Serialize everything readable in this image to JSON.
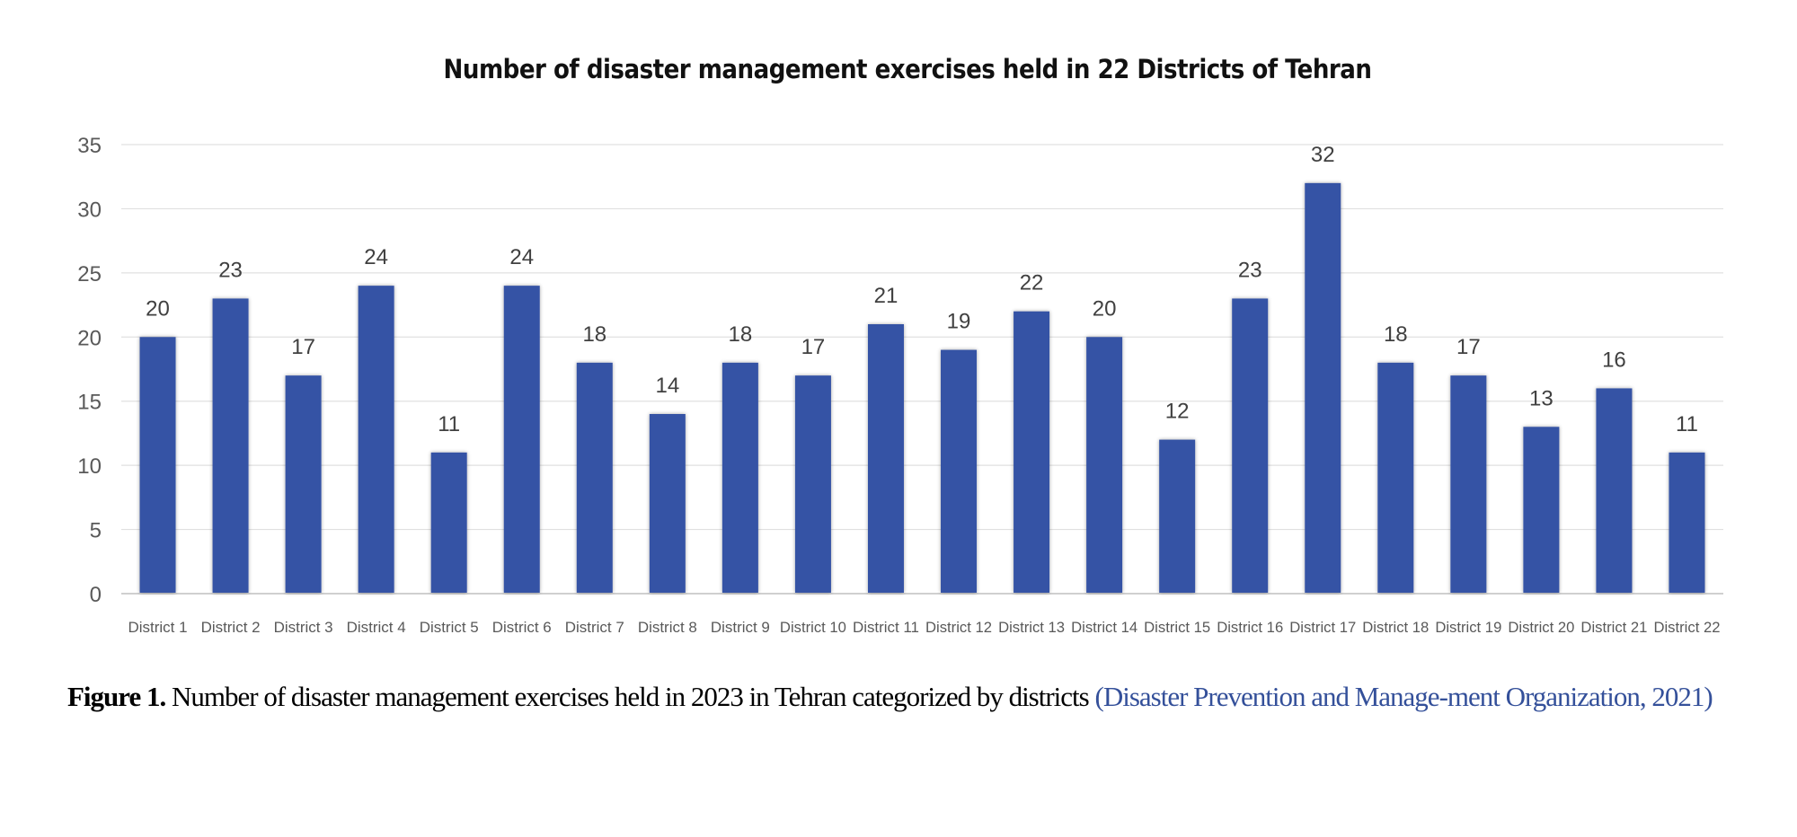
{
  "chart_data": {
    "type": "bar",
    "title": "Number of disaster management exercises held in 22 Districts of Tehran",
    "xlabel": "",
    "ylabel": "",
    "categories": [
      "District 1",
      "District 2",
      "District 3",
      "District 4",
      "District 5",
      "District 6",
      "District 7",
      "District 8",
      "District 9",
      "District 10",
      "District 11",
      "District 12",
      "District 13",
      "District 14",
      "District 15",
      "District 16",
      "District 17",
      "District 18",
      "District 19",
      "District 20",
      "District 21",
      "District 22"
    ],
    "values": [
      20,
      23,
      17,
      24,
      11,
      24,
      18,
      14,
      18,
      17,
      21,
      19,
      22,
      20,
      12,
      23,
      32,
      18,
      17,
      13,
      16,
      11
    ],
    "ylim": [
      0,
      35
    ],
    "yticks": [
      0,
      5,
      10,
      15,
      20,
      25,
      30,
      35
    ],
    "grid": true,
    "data_labels": true,
    "legend": "none",
    "bar_color": "#3653a5"
  },
  "caption": {
    "label": "Figure 1.",
    "text": " Number of disaster management exercises held in 2023 in Tehran categorized by districts ",
    "citation": "(Disaster  Prevention and Manage-ment Organization, 2021)"
  }
}
